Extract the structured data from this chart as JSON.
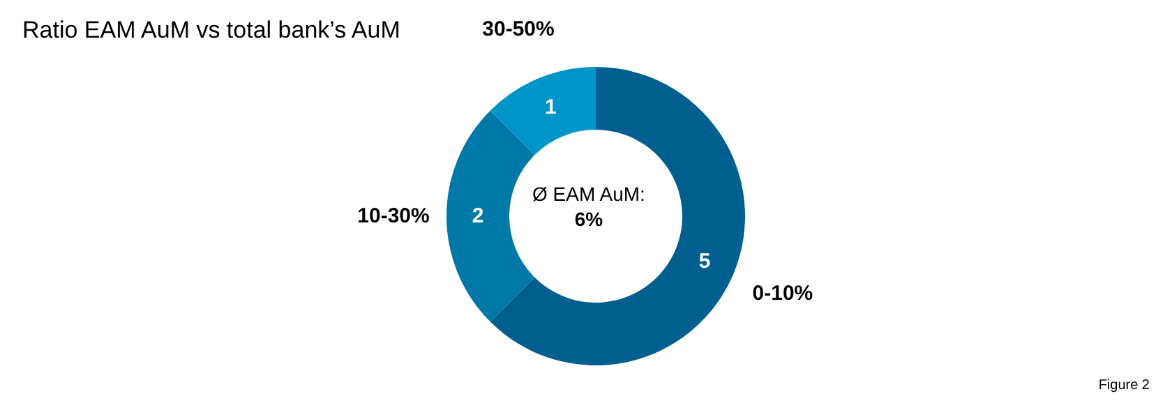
{
  "chart_data": {
    "type": "donut",
    "title": "Ratio EAM AuM vs total bank’s AuM",
    "categories": [
      "0-10%",
      "10-30%",
      "30-50%"
    ],
    "values": [
      5,
      2,
      1
    ],
    "colors": [
      "#005f8f",
      "#0079a8",
      "#0095c8"
    ],
    "data_labels": true,
    "annotations": [
      "Ø EAM AuM:",
      "6%",
      "Figure 2"
    ]
  }
}
